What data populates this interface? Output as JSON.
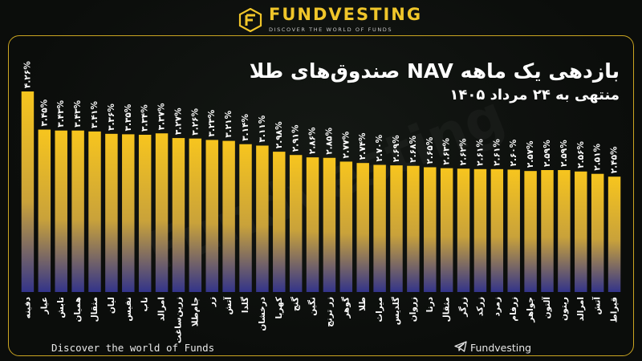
{
  "brand": {
    "name": "FUNDVESTING",
    "tagline": "DISCOVER THE WORLD OF FUNDS"
  },
  "title": "بازدهی یک ماهه NAV صندوق‌های طلا",
  "subtitle": "منتهی به ۲۴ مرداد ۱۴۰۵",
  "footer": {
    "left": "Discover the world of Funds",
    "right": "Fundvesting"
  },
  "watermark": "Fundvesting",
  "colors": {
    "accent": "#f0c62a",
    "bar_top": "#f7c51e",
    "bar_bottom": "#3a3a8c",
    "frame": "#caa521"
  },
  "chart_data": {
    "type": "bar",
    "title": "بازدهی یک ماهه NAV صندوق‌های طلا",
    "subtitle": "منتهی به ۲۴ مرداد ۱۴۰۵",
    "categories": [
      "دفینه",
      "عیار",
      "تابش",
      "همیان",
      "مثقال",
      "لیان",
      "نفیس",
      "ناب",
      "امرالد",
      "زرین‌ساغت",
      "جام‌طلا",
      "زر",
      "آتش",
      "گلدا",
      "درخشان",
      "کهربا",
      "گنج",
      "نگین",
      "زر ترنج",
      "گوهر",
      "طلا",
      "میراث",
      "گلدیس",
      "زروان",
      "درنا",
      "مثقال",
      "زرگر",
      "زرکد",
      "زمرد",
      "زرفام",
      "جواهر",
      "آلتون",
      "ریتون",
      "امرالد",
      "آتش",
      "قیراط"
    ],
    "values": [
      4.26,
      3.45,
      3.43,
      3.43,
      3.41,
      3.36,
      3.35,
      3.34,
      3.37,
      3.27,
      3.26,
      3.23,
      3.21,
      3.14,
      3.11,
      2.98,
      2.91,
      2.86,
      2.85,
      2.77,
      2.74,
      2.7,
      2.69,
      2.68,
      2.65,
      2.63,
      2.62,
      2.61,
      2.61,
      2.6,
      2.57,
      2.59,
      2.59,
      2.56,
      2.51,
      2.45
    ],
    "value_labels": [
      "۴.۲۶%",
      "۳.۴۵%",
      "۳.۴۳%",
      "۳.۴۳%",
      "۳.۴۱%",
      "۳.۳۶%",
      "۳.۳۵%",
      "۳.۳۴%",
      "۳.۳۷%",
      "۳.۲۷%",
      "۳.۲۶%",
      "۳.۲۳%",
      "۳.۲۱%",
      "۳.۱۴%",
      "۳.۱۱%",
      "۲.۹۸%",
      "۲.۹۱%",
      "۲.۸۶%",
      "۲.۸۵%",
      "۲.۷۷%",
      "۲.۷۴%",
      "۲.۷۰%",
      "۲.۶۹%",
      "۲.۶۸%",
      "۲.۶۵%",
      "۲.۶۳%",
      "۲.۶۲%",
      "۲.۶۱%",
      "۲.۶۱%",
      "۲.۶۰%",
      "۲.۵۷%",
      "۲.۵۹%",
      "۲.۵۹%",
      "۲.۵۶%",
      "۲.۵۱%",
      "۲.۴۵%"
    ],
    "ylim": [
      0,
      4.26
    ],
    "grid": false,
    "legend": "none"
  }
}
